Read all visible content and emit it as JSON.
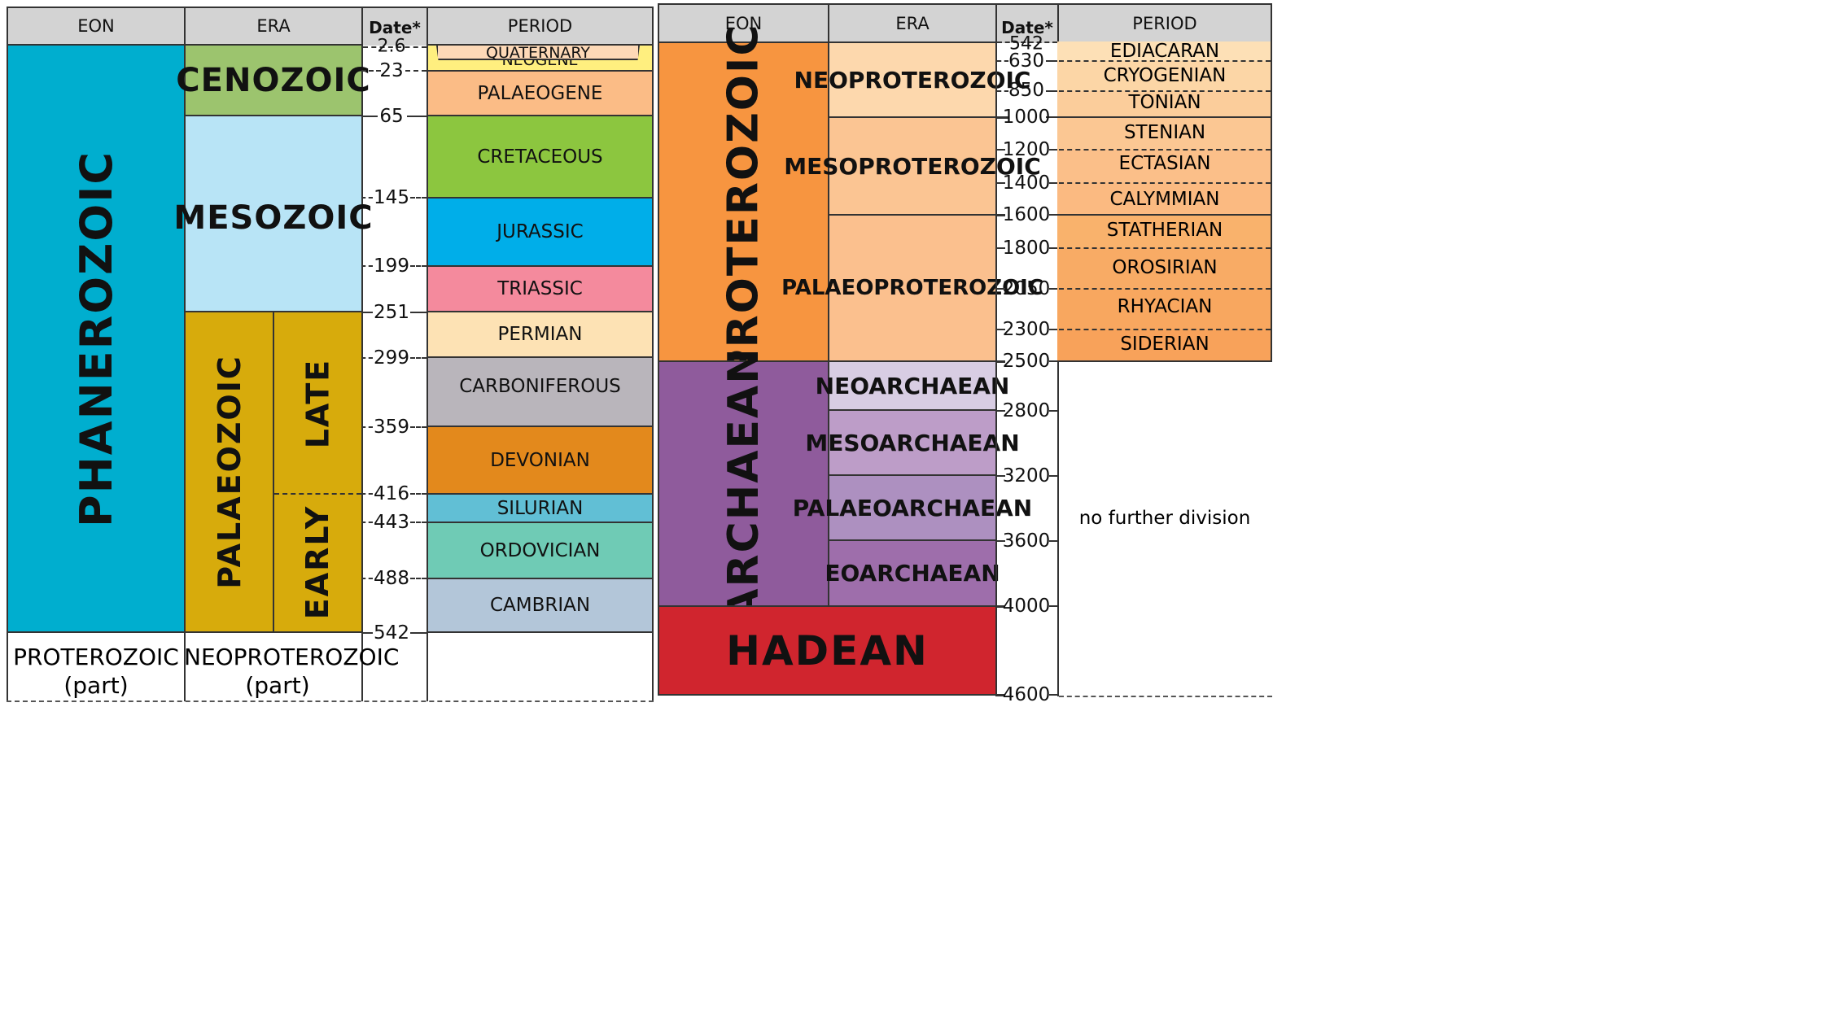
{
  "headers": {
    "eon": "EON",
    "era": "ERA",
    "date": "Date*",
    "period": "PERIOD"
  },
  "left": {
    "eon": "PHANEROZOIC",
    "eras": {
      "cenozoic": "CENOZOIC",
      "mesozoic": "MESOZOIC",
      "palaeozoic": "PALAEOZOIC",
      "late": "LATE",
      "early": "EARLY"
    },
    "periods": [
      "QUATERNARY",
      "NEOGENE",
      "PALAEOGENE",
      "CRETACEOUS",
      "JURASSIC",
      "TRIASSIC",
      "PERMIAN",
      "CARBONIFEROUS",
      "DEVONIAN",
      "SILURIAN",
      "ORDOVICIAN",
      "CAMBRIAN"
    ],
    "dates": [
      "2.6",
      "23",
      "65",
      "145",
      "199",
      "251",
      "299",
      "359",
      "416",
      "443",
      "488",
      "542"
    ],
    "below": {
      "eon_line1": "PROTEROZOIC",
      "eon_line2": "(part)",
      "era_line1": "NEOPROTEROZOIC",
      "era_line2": "(part)"
    }
  },
  "right": {
    "eons": {
      "proterozoic": "PROTEROZOIC",
      "archaean": "ARCHAEAN",
      "hadean": "HADEAN"
    },
    "eras": [
      "NEOPROTEROZOIC",
      "MESOPROTEROZOIC",
      "PALAEOPROTEROZOIC",
      "NEOARCHAEAN",
      "MESOARCHAEAN",
      "PALAEOARCHAEAN",
      "EOARCHAEAN"
    ],
    "periods": [
      "EDIACARAN",
      "CRYOGENIAN",
      "TONIAN",
      "STENIAN",
      "ECTASIAN",
      "CALYMMIAN",
      "STATHERIAN",
      "OROSIRIAN",
      "RHYACIAN",
      "SIDERIAN"
    ],
    "no_division": "no further division",
    "dates": [
      "542",
      "630",
      "850",
      "1000",
      "1200",
      "1400",
      "1600",
      "1800",
      "2050",
      "2300",
      "2500",
      "2800",
      "3200",
      "3600",
      "4000",
      "4600"
    ]
  },
  "colors": {
    "phanerozoic": "#00aecf",
    "cenozoic": "#9cc46e",
    "mesozoic": "#b8e4f6",
    "palaeozoic": "#d7ab0c",
    "quaternary": "#fdd9b7",
    "neogene": "#ffef7f",
    "palaeogene": "#fbbc86",
    "cretaceous": "#8cc63f",
    "jurassic": "#00aee9",
    "triassic": "#f48a9d",
    "permian": "#fde2b4",
    "carboniferous": "#b9b5bb",
    "devonian": "#e3891c",
    "silurian": "#61bfd5",
    "ordovician": "#6fcbb5",
    "cambrian": "#b3c6d9",
    "proterozoic": "#f79540",
    "archaean": "#8f5b9c",
    "hadean": "#d0252e",
    "neoproterozoic": "#fdd8ad",
    "mesoproterozoic": "#fbc593",
    "palaeoproterozoic": "#fbc08e",
    "neoarchaean": "#d8cde3",
    "mesoarchaean": "#bd9dc8",
    "palaeoarchaean": "#ad90c0",
    "eoarchaean": "#9e6eab",
    "ediacaran": "#fde0b6",
    "cryogenian": "#fcd6a6",
    "tonian": "#fbcd9b",
    "stenian": "#fbc793",
    "ectasian": "#fbbf89",
    "calymmian": "#fbba81",
    "statherian": "#f9b26c",
    "orosirian": "#f8ab65",
    "rhyacian": "#f8a75f",
    "siderian": "#f8a25a"
  }
}
